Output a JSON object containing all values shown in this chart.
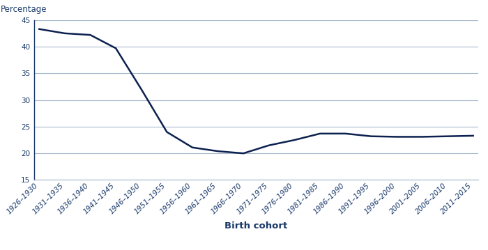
{
  "categories": [
    "1926–1930",
    "1931–1935",
    "1936–1940",
    "1941–1945",
    "1946–1950",
    "1951–1955",
    "1956–1960",
    "1961–1965",
    "1966–1970",
    "1971–1975",
    "1976–1980",
    "1981–1985",
    "1986–1990",
    "1991–1995",
    "1996–2000",
    "2001–2005",
    "2006–2010",
    "2011–2015"
  ],
  "values": [
    43.3,
    42.5,
    42.2,
    39.7,
    32.0,
    24.0,
    21.1,
    20.4,
    20.0,
    21.5,
    22.5,
    23.7,
    23.7,
    23.2,
    23.1,
    23.1,
    23.2,
    23.3
  ],
  "xlabel": "Birth cohort",
  "ylabel": "Percentage",
  "ylim": [
    15,
    45
  ],
  "yticks": [
    15,
    20,
    25,
    30,
    35,
    40,
    45
  ],
  "line_color": "#0d2150",
  "line_width": 1.8,
  "grid_color": "#a8b8cc",
  "background_color": "#ffffff",
  "tick_color": "#1a3a6b",
  "label_color": "#1a3a6b",
  "ylabel_fontsize": 8.5,
  "xlabel_fontsize": 9.5,
  "tick_fontsize": 7.5,
  "spine_color": "#1a3a6b"
}
